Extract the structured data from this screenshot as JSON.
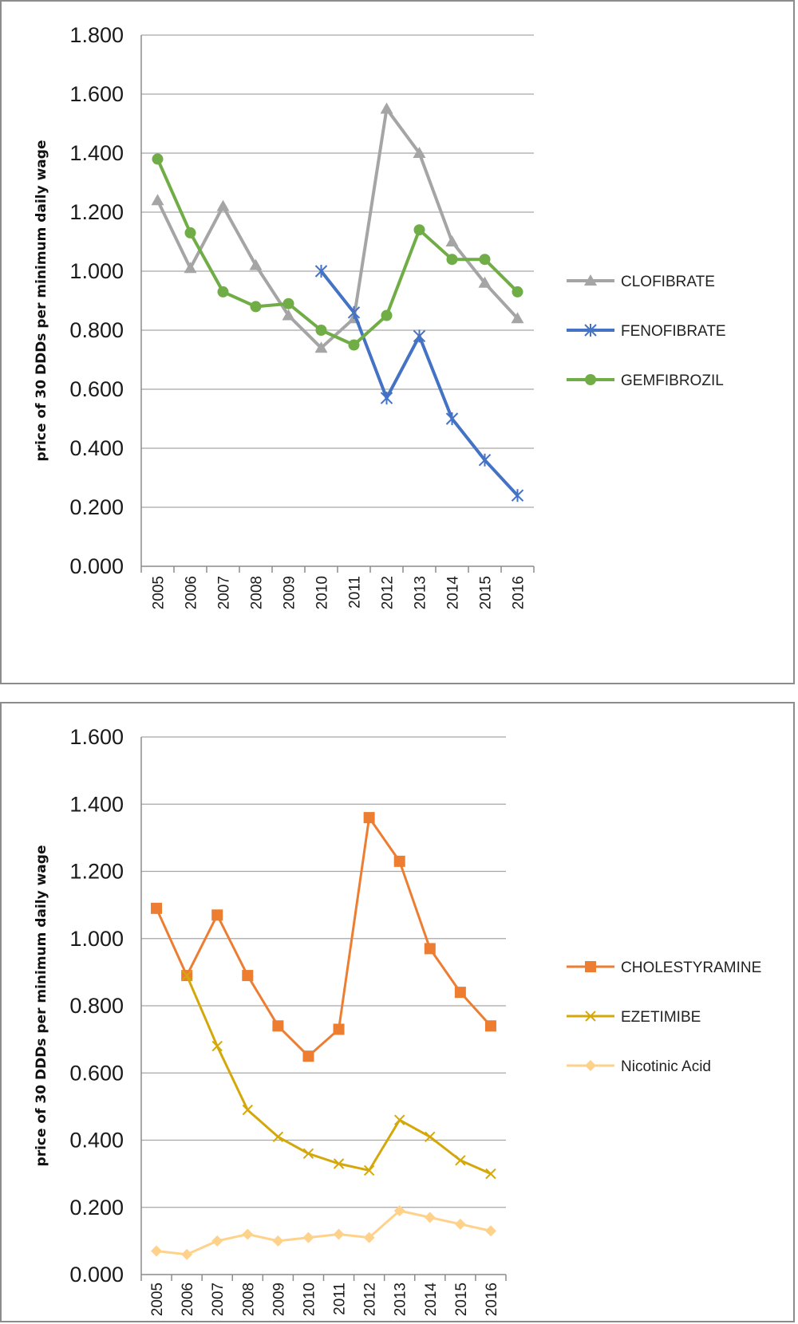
{
  "chart_data": [
    {
      "type": "line",
      "title": "",
      "xlabel": "",
      "ylabel": "price of 30 DDDs per minimum daily wage",
      "ylim": [
        0,
        1.8
      ],
      "yticks": [
        "0.000",
        "0.200",
        "0.400",
        "0.600",
        "0.800",
        "1.000",
        "1.200",
        "1.400",
        "1.600",
        "1.800"
      ],
      "grid": true,
      "legend": "right",
      "categories": [
        "2005",
        "2006",
        "2007",
        "2008",
        "2009",
        "2010",
        "2011",
        "2012",
        "2013",
        "2014",
        "2015",
        "2016"
      ],
      "series": [
        {
          "name": "CLOFIBRATE",
          "color": "#a5a5a5",
          "marker": "triangle",
          "values": [
            1.24,
            1.01,
            1.22,
            1.02,
            0.85,
            0.74,
            0.84,
            1.55,
            1.4,
            1.1,
            0.96,
            0.84
          ]
        },
        {
          "name": "FENOFIBRATE",
          "color": "#4472c4",
          "marker": "asterisk",
          "values": [
            null,
            null,
            null,
            null,
            null,
            1.0,
            0.86,
            0.57,
            0.78,
            0.5,
            0.36,
            0.24
          ]
        },
        {
          "name": "GEMFIBROZIL",
          "color": "#70ad47",
          "marker": "circle",
          "values": [
            1.38,
            1.13,
            0.93,
            0.88,
            0.89,
            0.8,
            0.75,
            0.85,
            1.14,
            1.04,
            1.04,
            0.93
          ]
        }
      ]
    },
    {
      "type": "line",
      "title": "",
      "xlabel": "",
      "ylabel": "price of 30 DDDs per minimum daily wage",
      "ylim": [
        0,
        1.6
      ],
      "yticks": [
        "0.000",
        "0.200",
        "0.400",
        "0.600",
        "0.800",
        "1.000",
        "1.200",
        "1.400",
        "1.600"
      ],
      "grid": true,
      "legend": "right",
      "categories": [
        "2005",
        "2006",
        "2007",
        "2008",
        "2009",
        "2010",
        "2011",
        "2012",
        "2013",
        "2014",
        "2015",
        "2016"
      ],
      "series": [
        {
          "name": "CHOLESTYRAMINE",
          "color": "#ed7d31",
          "marker": "square",
          "values": [
            1.09,
            0.89,
            1.07,
            0.89,
            0.74,
            0.65,
            0.73,
            1.36,
            1.23,
            0.97,
            0.84,
            0.74
          ]
        },
        {
          "name": "EZETIMIBE",
          "color": "#d4a80a",
          "marker": "cross",
          "values": [
            null,
            0.89,
            0.68,
            0.49,
            0.41,
            0.36,
            0.33,
            0.31,
            0.46,
            0.41,
            0.34,
            0.3
          ]
        },
        {
          "name": "Nicotinic Acid",
          "color": "#ffd28c",
          "marker": "diamond",
          "values": [
            0.07,
            0.06,
            0.1,
            0.12,
            0.1,
            0.11,
            0.12,
            0.11,
            0.19,
            0.17,
            0.15,
            0.13
          ]
        }
      ]
    }
  ]
}
